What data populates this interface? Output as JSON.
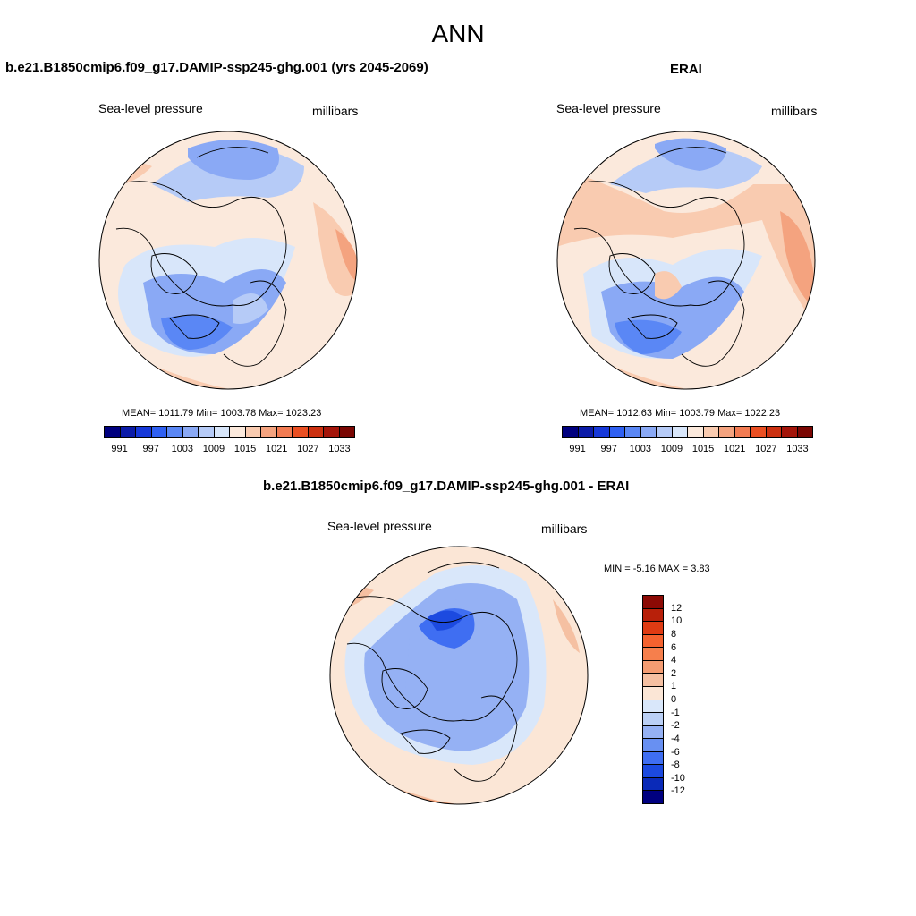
{
  "main_title": "ANN",
  "panels": {
    "model": {
      "title": "b.e21.B1850cmip6.f09_g17.DAMIP-ssp245-ghg.001 (yrs 2045-2069)",
      "field": "Sea-level pressure",
      "units": "millibars",
      "stats": "MEAN= 1011.79  Min= 1003.78  Max= 1023.23"
    },
    "obs": {
      "title": "ERAI",
      "field": "Sea-level pressure",
      "units": "millibars",
      "stats": "MEAN= 1012.63  Min= 1003.79  Max= 1022.23"
    },
    "diff": {
      "title": "b.e21.B1850cmip6.f09_g17.DAMIP-ssp245-ghg.001 - ERAI",
      "field": "Sea-level pressure",
      "units": "millibars",
      "stats": "MIN =  -5.16 MAX =   3.83"
    }
  },
  "colorbars": {
    "abs_colors": [
      "#00007f",
      "#0b1ba8",
      "#1638d9",
      "#2f60f2",
      "#5a87f5",
      "#8aa9f5",
      "#b6cbf7",
      "#d8e6fa",
      "#fbe9dc",
      "#f9cbb0",
      "#f4a37f",
      "#f27b52",
      "#ea4f22",
      "#cc3010",
      "#a4150a",
      "#7a0603"
    ],
    "abs_labels": [
      "991",
      "997",
      "1003",
      "1009",
      "1015",
      "1021",
      "1027",
      "1033"
    ],
    "diff_colors": [
      "#8c0a05",
      "#b8200a",
      "#df3b13",
      "#f4622f",
      "#f67f4c",
      "#f49c72",
      "#f5c0a2",
      "#fbe6d6",
      "#d9e7fa",
      "#bbd0f6",
      "#95b1f4",
      "#6890f2",
      "#3f6ef2",
      "#1c4ae0",
      "#0a2ab8",
      "#000080"
    ],
    "diff_labels": [
      "12",
      "10",
      "8",
      "6",
      "4",
      "2",
      "1",
      "0",
      "-1",
      "-2",
      "-4",
      "-6",
      "-8",
      "-10",
      "-12"
    ]
  }
}
